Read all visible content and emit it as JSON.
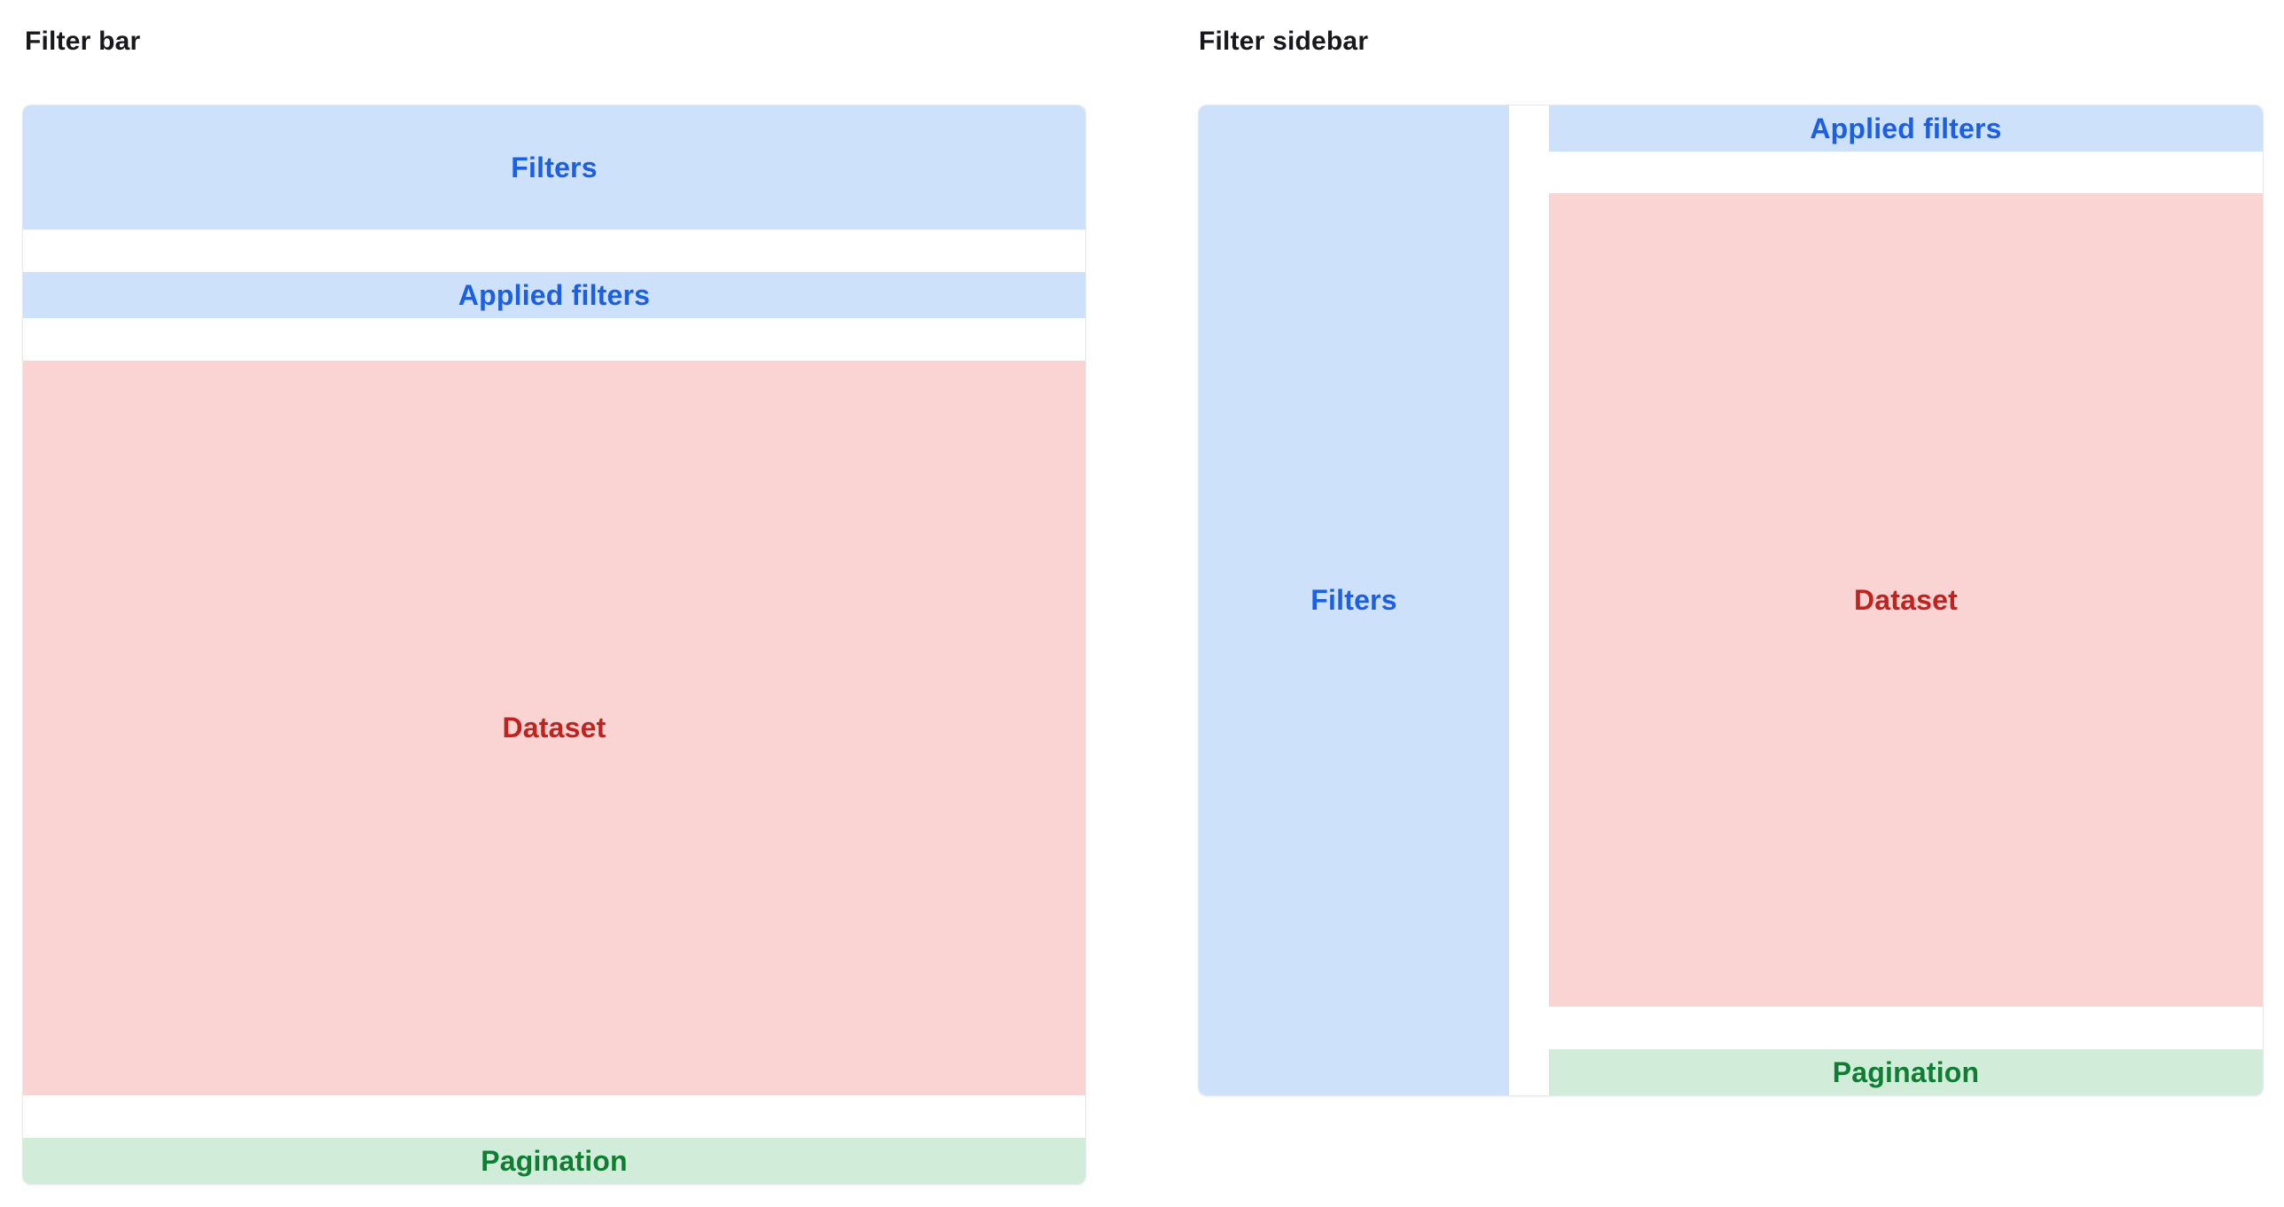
{
  "colors": {
    "blue-bg": "#cee1fb",
    "blue-text": "#1b5fe6",
    "red-bg": "#f9d4d2",
    "red-text": "#c2221d",
    "green-bg": "#d2ecda",
    "green-text": "#0f7e33",
    "frame-border": "#e7e9ee",
    "heading-text": "#17181c"
  },
  "panels": [
    {
      "title": "Filter bar",
      "layout": "stacked",
      "blocks": {
        "filters": "Filters",
        "applied_filters": "Applied filters",
        "dataset": "Dataset",
        "pagination": "Pagination"
      }
    },
    {
      "title": "Filter sidebar",
      "layout": "sidebar",
      "blocks": {
        "filters": "Filters",
        "applied_filters": "Applied filters",
        "dataset": "Dataset",
        "pagination": "Pagination"
      }
    }
  ]
}
